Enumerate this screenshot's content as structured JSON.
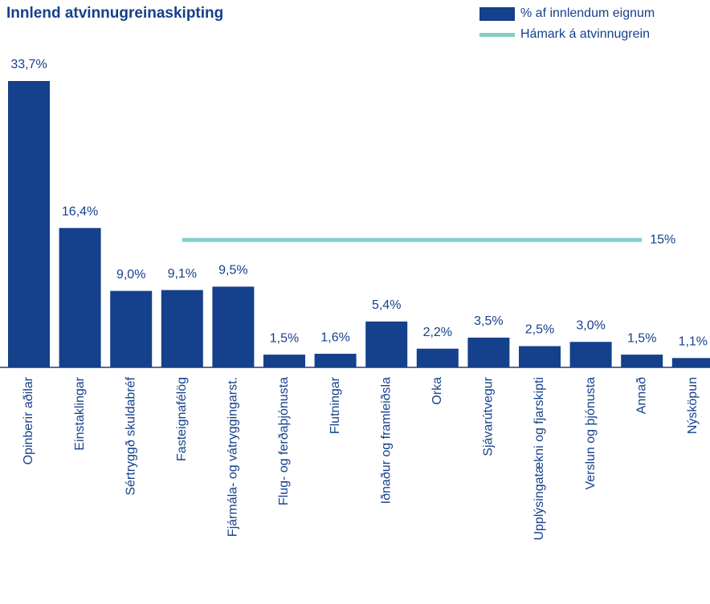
{
  "chart_data": {
    "type": "bar",
    "title": "Innlend atvinnugreinaskipting",
    "categories": [
      "Opinberir aðilar",
      "Einstaklingar",
      "Sértryggð skuldabréf",
      "Fasteignafélög",
      "Fjármála- og vátryggingarst.",
      "Flug- og ferðaþjónusta",
      "Flutningar",
      "Iðnaður og framleiðsla",
      "Orka",
      "Sjávarútvegur",
      "Upplýsingatækni og fjarskipti",
      "Verslun og þjónusta",
      "Annað",
      "Nýsköpun"
    ],
    "series": [
      {
        "name": "% af innlendum eignum",
        "type": "bar",
        "color": "#15408b",
        "values": [
          33.7,
          16.4,
          9.0,
          9.1,
          9.5,
          1.5,
          1.6,
          5.4,
          2.2,
          3.5,
          2.5,
          3.0,
          1.5,
          1.1
        ],
        "value_labels": [
          "33,7%",
          "16,4%",
          "9,0%",
          "9,1%",
          "9,5%",
          "1,5%",
          "1,6%",
          "5,4%",
          "2,2%",
          "3,5%",
          "2,5%",
          "3,0%",
          "1,5%",
          "1,1%"
        ]
      },
      {
        "name": "Hámark á atvinnugrein",
        "type": "line",
        "color": "#7fcfc9",
        "values": [
          null,
          null,
          null,
          15,
          15,
          15,
          15,
          15,
          15,
          15,
          15,
          15,
          15,
          null
        ],
        "end_label": "15%"
      }
    ]
  }
}
